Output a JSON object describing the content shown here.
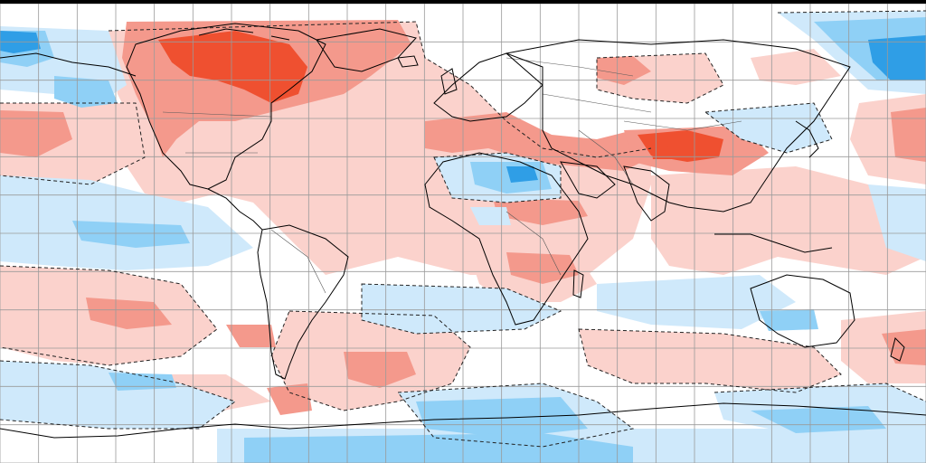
{
  "map": {
    "projection": "equirectangular",
    "background": "#ffffff",
    "frame_color": "#000000",
    "gridline_color": "#9a9a9a",
    "coastline_color": "#000000",
    "border_color": "#5a5a5a",
    "contour_color": "#222222",
    "anomaly_colors": {
      "strong_warm": "#ef5030",
      "warm": "#f4998c",
      "slight_warm": "#fbd2cc",
      "neutral": "#ffffff",
      "slight_cool": "#cfe9fb",
      "cool": "#8fd0f6",
      "strong_cool": "#2f9ee6"
    }
  }
}
